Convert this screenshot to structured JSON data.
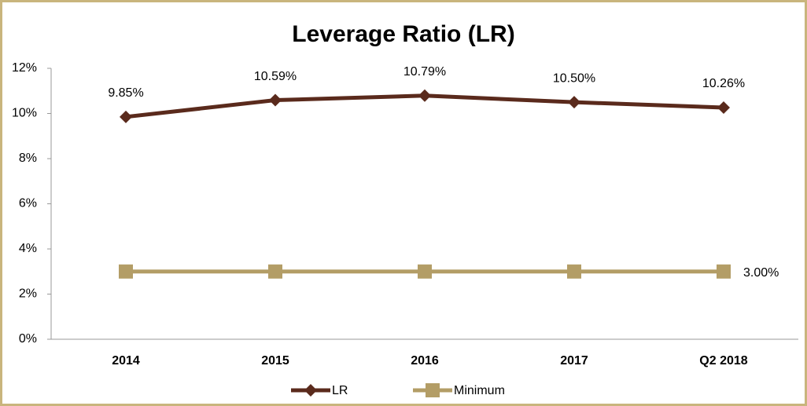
{
  "chart_data": {
    "type": "line",
    "title": "Leverage Ratio (LR)",
    "categories": [
      "2014",
      "2015",
      "2016",
      "2017",
      "Q2 2018"
    ],
    "series": [
      {
        "name": "LR",
        "color": "#5a2a1c",
        "marker": "diamond",
        "values": [
          9.85,
          10.59,
          10.79,
          10.5,
          10.26
        ],
        "value_labels": [
          "9.85%",
          "10.59%",
          "10.79%",
          "10.50%",
          "10.26%"
        ]
      },
      {
        "name": "Minimum",
        "color": "#b39d66",
        "marker": "square",
        "values": [
          3,
          3,
          3,
          3,
          3
        ],
        "value_labels": [
          null,
          null,
          null,
          null,
          "3.00%"
        ]
      }
    ],
    "ylim": [
      0,
      12
    ],
    "yticks": [
      {
        "value": 0,
        "label": "0%"
      },
      {
        "value": 2,
        "label": "2%"
      },
      {
        "value": 4,
        "label": "4%"
      },
      {
        "value": 6,
        "label": "6%"
      },
      {
        "value": 8,
        "label": "8%"
      },
      {
        "value": 10,
        "label": "10%"
      },
      {
        "value": 12,
        "label": "12%"
      }
    ],
    "grid": false,
    "legend": "bottom"
  }
}
